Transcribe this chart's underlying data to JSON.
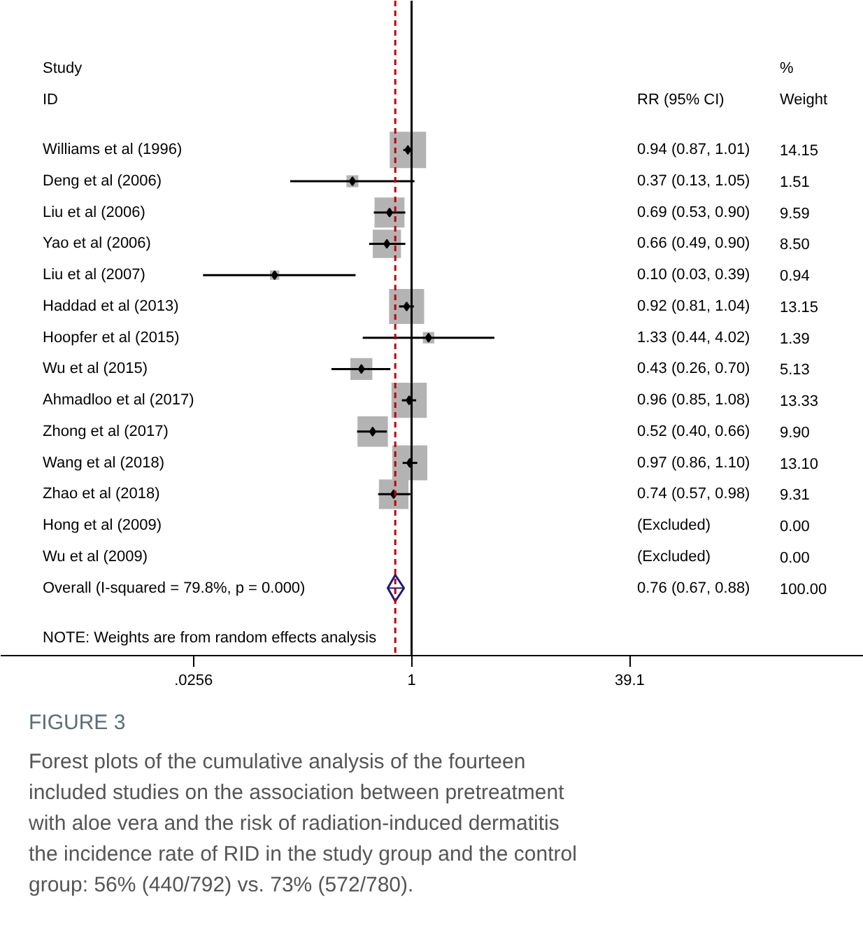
{
  "chart_data": {
    "type": "bubble",
    "orientation": "horizontal",
    "log": "x",
    "grid": false,
    "tick_labels": "x",
    "title": "FIGURE 3",
    "subtitle": "Forest plots of the cumulative analysis of the fourteen included studies on the association between pretreatment with aloe vera and the risk of radiation-induced dermatitis the incidence rate of RID in the study group and the control group: 56% (440/792) vs. 73% (572/780).",
    "categories": [
      "Williams et al (1996)",
      "Deng et al (2006)",
      "Liu et al (2006)",
      "Yao et al (2006)",
      "Liu et al (2007)",
      "Haddad et al (2013)",
      "Hoopfer et al (2015)",
      "Wu et al (2015)",
      "Ahmadloo et al (2017)",
      "Zhong et al (2017)",
      "Wang et al (2018)",
      "Zhao et al (2018)",
      "Hong et al (2009)",
      "Wu et al (2009)",
      "Overall  (I-squared = 79.8%, p = 0.000)"
    ],
    "xlim": [
      0.001,
      2000
    ],
    "xticks": [
      {
        "value": 0.0256,
        "label": ".0256"
      },
      1,
      39.1
    ],
    "annotations": [
      "Study",
      "ID",
      "RR (95% CI)",
      "%",
      "Weight",
      "NOTE: Weights are from random effects analysis",
      "0.94 (0.87, 1.01)",
      "14.15",
      "0.37 (0.13, 1.05)",
      "1.51",
      "0.69 (0.53, 0.90)",
      "9.59",
      "0.66 (0.49, 0.90)",
      "8.50",
      "0.10 (0.03, 0.39)",
      "0.94",
      "0.92 (0.81, 1.04)",
      "13.15",
      "1.33 (0.44, 4.02)",
      "1.39",
      "0.43 (0.26, 0.70)",
      "5.13",
      "0.96 (0.85, 1.08)",
      "13.33",
      "0.52 (0.40, 0.66)",
      "9.90",
      "0.97 (0.86, 1.10)",
      "13.10",
      "0.74 (0.57, 0.98)",
      "9.31",
      "(Excluded)",
      "0.00",
      "(Excluded)",
      "0.00",
      "0.76 (0.67, 0.88)",
      "100.00"
    ],
    "ref_lines": [
      {
        "axis": "x",
        "value": 1,
        "color": "#000000",
        "line_style": "solid"
      },
      {
        "axis": "x",
        "value": 0.76,
        "color": "#c00000",
        "line_style": "dashed"
      }
    ],
    "series": [
      {
        "marker": "square",
        "color": "#b3b3b3",
        "values": [
          0.94,
          0.37,
          0.69,
          0.66,
          0.1,
          0.92,
          1.33,
          0.43,
          0.96,
          0.52,
          0.97,
          0.74,
          null,
          null,
          null
        ],
        "errors": [
          [
            0.87,
            1.01
          ],
          [
            0.13,
            1.05
          ],
          [
            0.53,
            0.9
          ],
          [
            0.49,
            0.9
          ],
          [
            0.03,
            0.39
          ],
          [
            0.81,
            1.04
          ],
          [
            0.44,
            4.02
          ],
          [
            0.26,
            0.7
          ],
          [
            0.85,
            1.08
          ],
          [
            0.4,
            0.66
          ],
          [
            0.86,
            1.1
          ],
          [
            0.57,
            0.98
          ],
          null,
          null,
          null
        ],
        "sizes": [
          1,
          0.107,
          0.678,
          0.601,
          0.066,
          0.929,
          0.098,
          0.363,
          0.942,
          0.7,
          0.926,
          0.658,
          null,
          null,
          null
        ]
      },
      {
        "type": "scatter",
        "marker": "diamond",
        "color": "#1a1a80",
        "values": [
          null,
          null,
          null,
          null,
          null,
          null,
          null,
          null,
          null,
          null,
          null,
          null,
          null,
          null,
          0.76
        ],
        "errors": [
          null,
          null,
          null,
          null,
          null,
          null,
          null,
          null,
          null,
          null,
          null,
          null,
          null,
          null,
          [
            0.67,
            0.88
          ]
        ]
      }
    ]
  }
}
